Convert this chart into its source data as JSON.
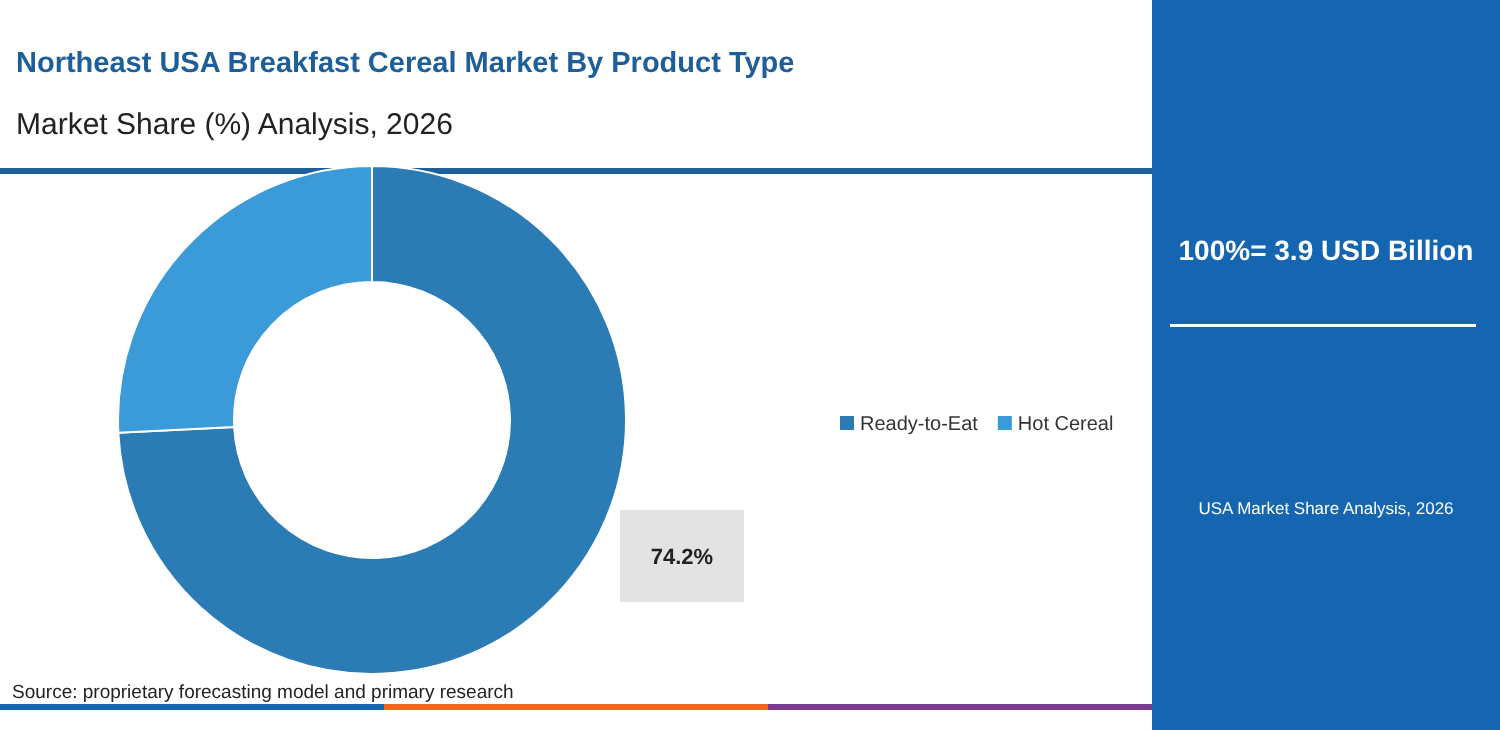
{
  "chart_data": {
    "type": "donut",
    "title": "Northeast USA Breakfast Cereal Market By Product Type",
    "subtitle": "Market Share (%) Analysis, 2026",
    "categories": [
      "Ready-to-Eat",
      "Hot Cereal"
    ],
    "values": [
      74.2,
      25.8
    ],
    "colors": [
      "#2b7bb4",
      "#3b9ad8"
    ],
    "value_labels": [
      "74.2%",
      null
    ],
    "legend": "right",
    "annotations": [
      "100%= 3.9 USD Billion",
      "USA Market Share Analysis, 2026",
      "Source: proprietary forecasting model and primary research"
    ]
  }
}
